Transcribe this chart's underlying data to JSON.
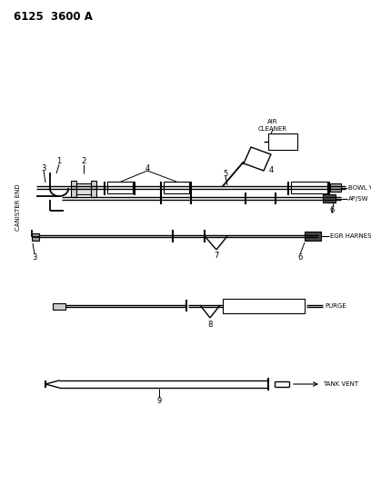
{
  "title": "6125  3600 A",
  "background_color": "#ffffff",
  "text_color": "#000000",
  "line_color": "#000000",
  "labels": {
    "air_cleaner": "AIR\nCLEANER",
    "bowl_vent": "BOWL VENT",
    "ap_sw": "AP/SW",
    "egr_harness": "EGR HARNESS",
    "purge": "PURGE",
    "tank_vent": "TANK VENT",
    "canister_end": "CANISTER END"
  },
  "fig_width": 4.08,
  "fig_height": 5.33,
  "dpi": 100
}
